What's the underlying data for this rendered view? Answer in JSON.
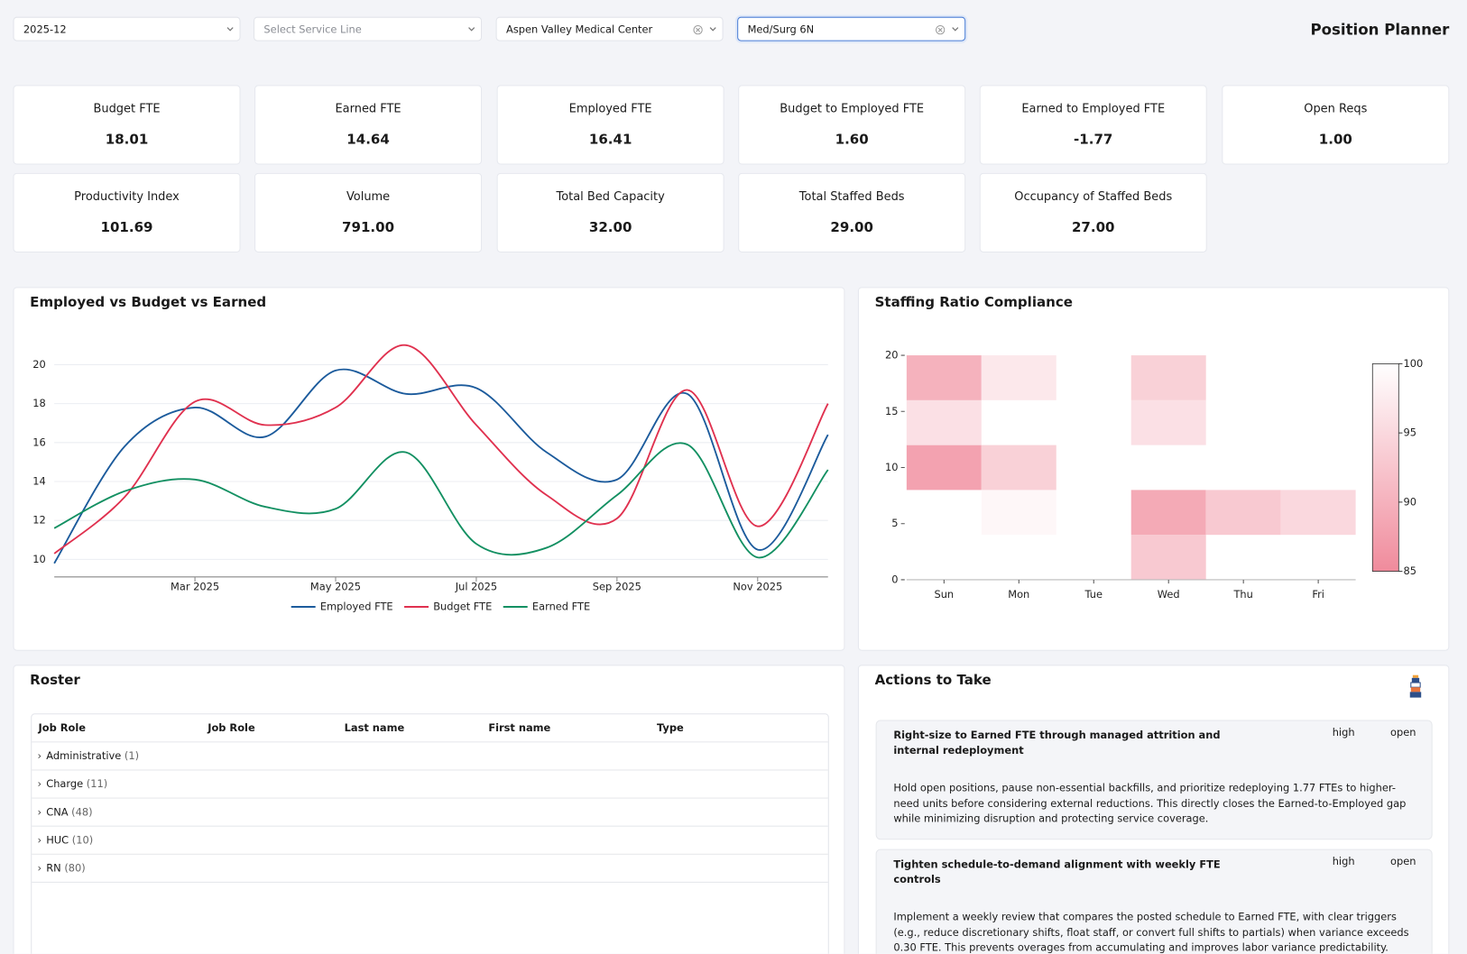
{
  "header": {
    "title": "Position Planner"
  },
  "filters": [
    {
      "text": "2025-12"
    },
    {
      "placeholder": "Select Service Line"
    },
    {
      "text": "Aspen Valley Medical Center"
    },
    {
      "text": "Med/Surg 6N"
    }
  ],
  "kpis": [
    {
      "label": "Budget FTE",
      "value": "18.01"
    },
    {
      "label": "Earned FTE",
      "value": "14.64"
    },
    {
      "label": "Employed FTE",
      "value": "16.41"
    },
    {
      "label": "Budget to Employed FTE",
      "value": "1.60"
    },
    {
      "label": "Earned to Employed FTE",
      "value": "-1.77"
    },
    {
      "label": "Open Reqs",
      "value": "1.00"
    },
    {
      "label": "Productivity Index",
      "value": "101.69"
    },
    {
      "label": "Volume",
      "value": "791.00"
    },
    {
      "label": "Total Bed Capacity",
      "value": "32.00"
    },
    {
      "label": "Total Staffed Beds",
      "value": "29.00"
    },
    {
      "label": "Occupancy of Staffed Beds",
      "value": "27.00"
    }
  ],
  "chart_data": [
    {
      "type": "line",
      "title": "Employed vs Budget vs Earned",
      "x": [
        "2025-01",
        "2025-02",
        "2025-03",
        "2025-04",
        "2025-05",
        "2025-06",
        "2025-07",
        "2025-08",
        "2025-09",
        "2025-10",
        "2025-11",
        "2025-12"
      ],
      "xlim": [
        "2025-01",
        "2025-12"
      ],
      "xticks": [
        {
          "value": "2025-03",
          "label": "Mar 2025"
        },
        {
          "value": "2025-05",
          "label": "May 2025"
        },
        {
          "value": "2025-07",
          "label": "Jul 2025"
        },
        {
          "value": "2025-09",
          "label": "Sep 2025"
        },
        {
          "value": "2025-11",
          "label": "Nov 2025"
        }
      ],
      "ylim": [
        9.1,
        21.2
      ],
      "yticks": [
        10,
        12,
        14,
        16,
        18,
        20
      ],
      "grid": true,
      "legend": "bottom",
      "series": [
        {
          "name": "Employed FTE",
          "color": "#1c5b9c",
          "values": [
            9.8,
            15.8,
            17.8,
            16.3,
            19.7,
            18.5,
            18.8,
            15.5,
            14.1,
            18.5,
            10.5,
            16.4
          ]
        },
        {
          "name": "Budget FTE",
          "color": "#e0314f",
          "values": [
            10.3,
            13.2,
            18.1,
            16.9,
            17.8,
            21.0,
            16.9,
            13.3,
            12.1,
            18.7,
            11.7,
            18.0
          ]
        },
        {
          "name": "Earned FTE",
          "color": "#139062",
          "values": [
            11.6,
            13.5,
            14.1,
            12.7,
            12.6,
            15.5,
            10.8,
            10.6,
            13.3,
            15.9,
            10.1,
            14.6
          ]
        }
      ]
    },
    {
      "type": "heatmap",
      "title": "Staffing Ratio Compliance",
      "categories": [
        "Sun",
        "Mon",
        "Tue",
        "Wed",
        "Thu",
        "Fri"
      ],
      "ybins": [
        0,
        4,
        8,
        12,
        16,
        20
      ],
      "values": [
        [
          null,
          null,
          null,
          93,
          null,
          null
        ],
        [
          null,
          99,
          null,
          89,
          93,
          95
        ],
        [
          88,
          94,
          null,
          null,
          null,
          null
        ],
        [
          96,
          null,
          null,
          96,
          null,
          null
        ],
        [
          90,
          97,
          null,
          94,
          null,
          null
        ]
      ],
      "ylim": [
        0,
        20
      ],
      "yticks": [
        0,
        5,
        10,
        15,
        20
      ],
      "colorlim": [
        85,
        100
      ],
      "colorticks": [
        85,
        90,
        95,
        100
      ],
      "colors": [
        "#f08b9c",
        "#ffffff"
      ]
    }
  ],
  "roster": {
    "title": "Roster",
    "columns": [
      "Job Role",
      "Job Role",
      "Last name",
      "First name",
      "Type"
    ],
    "groups": [
      {
        "name": "Administrative",
        "count": "(1)"
      },
      {
        "name": "Charge",
        "count": "(11)"
      },
      {
        "name": "CNA",
        "count": "(48)"
      },
      {
        "name": "HUC",
        "count": "(10)"
      },
      {
        "name": "RN",
        "count": "(80)"
      }
    ]
  },
  "actions": {
    "title": "Actions to Take",
    "items": [
      {
        "title": "Right-size to Earned FTE through managed attrition and internal redeployment",
        "priority": "high",
        "status": "open",
        "description": "Hold open positions, pause non-essential backfills, and prioritize redeploying 1.77 FTEs to higher-need units before considering external reductions. This directly closes the Earned-to-Employed gap while minimizing disruption and protecting service coverage."
      },
      {
        "title": "Tighten schedule-to-demand alignment with weekly FTE controls",
        "priority": "high",
        "status": "open",
        "description": "Implement a weekly review that compares the posted schedule to Earned FTE, with clear triggers (e.g., reduce discretionary shifts, float staff, or convert full shifts to partials) when variance exceeds 0.30 FTE. This prevents overages from accumulating and improves labor variance predictability."
      }
    ]
  }
}
